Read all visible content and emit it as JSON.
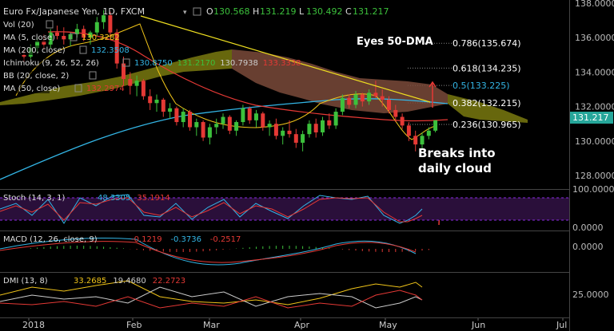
{
  "header": {
    "symbol": "Euro Fx/Japanese Yen, 1D, FXCM",
    "ohlc": [
      {
        "key": "O",
        "value": "130.568"
      },
      {
        "key": "H",
        "value": "131.219"
      },
      {
        "key": "L",
        "value": "130.492"
      },
      {
        "key": "C",
        "value": "131.217"
      }
    ]
  },
  "legend": [
    {
      "label": "Vol (20)",
      "values": [],
      "colors": []
    },
    {
      "label": "MA (5, close)",
      "values": [
        "130.3282"
      ],
      "colors": [
        "#f0c419"
      ]
    },
    {
      "label": "MA (200, close)",
      "values": [
        "132.3508"
      ],
      "colors": [
        "#33b5e5"
      ]
    },
    {
      "label": "Ichimoku (9, 26, 52, 26)",
      "values": [
        "130.8750",
        "131.2170",
        "130.7938",
        "133.3338"
      ],
      "colors": [
        "#33b5e5",
        "#3cc13c",
        "#cccccc",
        "#e53935"
      ]
    },
    {
      "label": "BB (20, close, 2)",
      "values": [],
      "colors": []
    },
    {
      "label": "MA (50, close)",
      "values": [
        "132.2974"
      ],
      "colors": [
        "#e53935"
      ]
    }
  ],
  "annotations": {
    "eyes": "Eyes 50-DMA",
    "breaks_line1": "Breaks into",
    "breaks_line2": "daily cloud"
  },
  "fib_levels": [
    {
      "label": "0.786(135.674)",
      "value": 135.674,
      "color": "#ffffff"
    },
    {
      "label": "0.618(134.235)",
      "value": 134.235,
      "color": "#ffffff"
    },
    {
      "label": "0.5(133.225)",
      "value": 133.225,
      "color": "#33b5e5"
    },
    {
      "label": "0.382(132.215)",
      "value": 132.215,
      "color": "#ffffff"
    },
    {
      "label": "0.236(130.965)",
      "value": 130.965,
      "color": "#ffffff"
    }
  ],
  "price_axis": {
    "ticks": [
      "138.0000",
      "136.0000",
      "134.0000",
      "132.0000",
      "130.0000",
      "128.0000"
    ],
    "current": "131.217",
    "current_value": 131.217
  },
  "indicators": {
    "stoch": {
      "label": "Stoch (14, 3, 1)",
      "values": [
        "48.3305",
        "35.1914"
      ],
      "colors": [
        "#33b5e5",
        "#e53935"
      ],
      "ticks": [
        "100.0000",
        "0.0000"
      ]
    },
    "macd": {
      "label": "MACD (12, 26, close, 9)",
      "values": [
        "-0.1219",
        "-0.3736",
        "-0.2517"
      ],
      "colors": [
        "#e53935",
        "#33b5e5",
        "#e53935"
      ],
      "ticks": [
        "0.0000"
      ]
    },
    "dmi": {
      "label": "DMI (13, 8)",
      "values": [
        "33.2685",
        "19.4680",
        "22.2723"
      ],
      "colors": [
        "#f0c419",
        "#cccccc",
        "#e53935"
      ],
      "ticks": [
        "25.0000"
      ]
    }
  },
  "time_axis": {
    "labels": [
      "2018",
      "Feb",
      "Mar",
      "Apr",
      "May",
      "Jun",
      "Jul"
    ]
  },
  "chart_data": {
    "type": "candlestick",
    "ylim": [
      127.2,
      138.2
    ],
    "ohlc": [
      [
        135.0,
        135.3,
        134.6,
        134.9
      ],
      [
        134.9,
        135.6,
        134.7,
        135.4
      ],
      [
        135.4,
        136.0,
        135.1,
        135.8
      ],
      [
        135.8,
        136.2,
        135.3,
        135.6
      ],
      [
        135.6,
        136.5,
        135.4,
        136.3
      ],
      [
        136.3,
        136.7,
        135.9,
        136.1
      ],
      [
        136.1,
        136.6,
        135.6,
        135.9
      ],
      [
        135.9,
        136.3,
        135.5,
        136.2
      ],
      [
        136.2,
        136.8,
        136.0,
        136.5
      ],
      [
        136.5,
        136.7,
        135.8,
        136.0
      ],
      [
        136.0,
        136.4,
        135.6,
        136.3
      ],
      [
        136.3,
        137.2,
        136.1,
        136.9
      ],
      [
        136.9,
        137.6,
        136.5,
        137.3
      ],
      [
        137.3,
        137.5,
        136.0,
        136.3
      ],
      [
        136.3,
        136.5,
        134.2,
        134.5
      ],
      [
        134.5,
        134.9,
        133.2,
        133.6
      ],
      [
        133.6,
        134.0,
        132.7,
        133.2
      ],
      [
        133.2,
        133.8,
        132.6,
        133.5
      ],
      [
        133.5,
        133.6,
        132.4,
        132.6
      ],
      [
        132.6,
        133.0,
        131.8,
        132.2
      ],
      [
        132.2,
        132.7,
        131.7,
        132.4
      ],
      [
        132.4,
        132.5,
        131.4,
        131.7
      ],
      [
        131.7,
        132.2,
        131.3,
        131.9
      ],
      [
        131.9,
        132.0,
        130.9,
        131.1
      ],
      [
        131.1,
        131.9,
        130.8,
        131.7
      ],
      [
        131.7,
        131.8,
        130.6,
        130.8
      ],
      [
        130.8,
        131.3,
        130.3,
        131.1
      ],
      [
        131.1,
        131.2,
        130.0,
        130.2
      ],
      [
        130.2,
        131.0,
        129.8,
        130.8
      ],
      [
        130.8,
        131.3,
        130.4,
        131.0
      ],
      [
        131.0,
        131.6,
        130.7,
        131.4
      ],
      [
        131.4,
        131.5,
        130.4,
        130.6
      ],
      [
        130.6,
        131.2,
        130.3,
        131.1
      ],
      [
        131.1,
        132.1,
        130.9,
        131.9
      ],
      [
        131.9,
        132.0,
        131.0,
        131.2
      ],
      [
        131.2,
        131.8,
        130.8,
        131.6
      ],
      [
        131.6,
        131.7,
        130.6,
        130.8
      ],
      [
        130.8,
        131.2,
        130.3,
        131.0
      ],
      [
        131.0,
        131.3,
        130.1,
        130.3
      ],
      [
        130.3,
        130.8,
        129.8,
        130.6
      ],
      [
        130.6,
        131.2,
        130.2,
        130.4
      ],
      [
        130.4,
        130.7,
        129.6,
        129.9
      ],
      [
        129.9,
        130.6,
        129.4,
        130.4
      ],
      [
        130.4,
        131.2,
        130.2,
        131.0
      ],
      [
        131.0,
        131.3,
        130.2,
        130.5
      ],
      [
        130.5,
        131.4,
        130.3,
        131.2
      ],
      [
        131.2,
        131.6,
        130.7,
        130.9
      ],
      [
        130.9,
        131.9,
        130.7,
        131.7
      ],
      [
        131.7,
        132.7,
        131.5,
        132.5
      ],
      [
        132.5,
        132.7,
        131.9,
        132.1
      ],
      [
        132.1,
        132.9,
        131.9,
        132.7
      ],
      [
        132.7,
        132.8,
        132.0,
        132.3
      ],
      [
        132.3,
        133.0,
        132.1,
        132.8
      ],
      [
        132.8,
        133.5,
        132.5,
        132.6
      ],
      [
        132.6,
        133.0,
        132.0,
        132.4
      ],
      [
        132.4,
        132.6,
        131.6,
        131.8
      ],
      [
        131.8,
        132.1,
        131.1,
        131.4
      ],
      [
        131.4,
        131.6,
        130.7,
        130.9
      ],
      [
        130.9,
        131.1,
        130.0,
        130.3
      ],
      [
        130.3,
        130.6,
        129.4,
        129.8
      ],
      [
        129.8,
        130.5,
        129.5,
        130.3
      ],
      [
        130.3,
        130.8,
        130.1,
        130.6
      ],
      [
        130.6,
        131.2,
        130.5,
        131.2
      ]
    ],
    "current_price": 131.217
  }
}
